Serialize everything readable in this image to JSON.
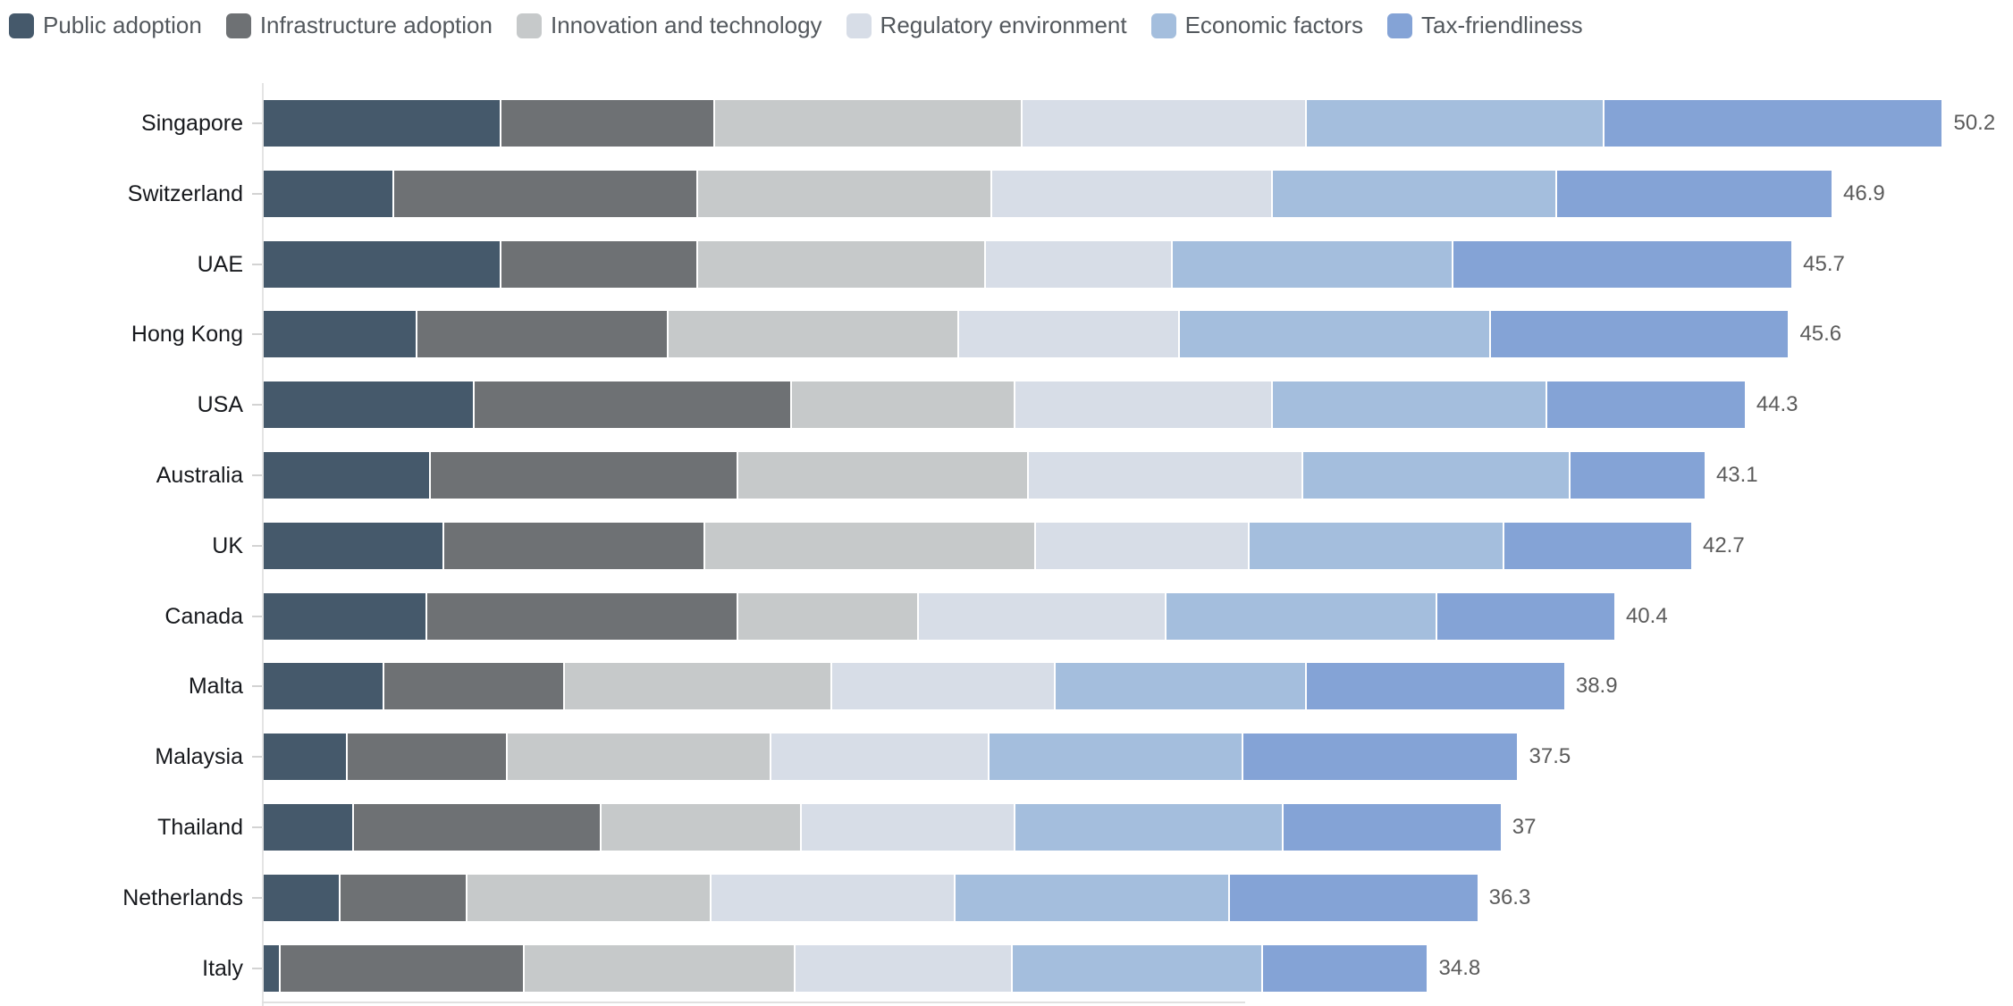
{
  "chart_data": {
    "type": "bar",
    "orientation": "horizontal",
    "stacked": true,
    "legend_position": "top",
    "grid": false,
    "xlim": [
      0,
      52
    ],
    "categories": [
      "Singapore",
      "Switzerland",
      "UAE",
      "Hong Kong",
      "USA",
      "Australia",
      "UK",
      "Canada",
      "Malta",
      "Malaysia",
      "Thailand",
      "Netherlands",
      "Italy"
    ],
    "series": [
      {
        "name": "Public adoption",
        "color": "#45596b",
        "values": [
          7.1,
          3.9,
          7.1,
          4.6,
          6.3,
          5.0,
          5.4,
          4.9,
          3.6,
          2.5,
          2.7,
          2.3,
          0.5
        ]
      },
      {
        "name": "Infrastructure adoption",
        "color": "#6e7174",
        "values": [
          6.4,
          9.1,
          5.9,
          7.5,
          9.5,
          9.2,
          7.8,
          9.3,
          5.4,
          4.8,
          7.4,
          3.8,
          7.3
        ]
      },
      {
        "name": "Innovation and technology",
        "color": "#c6c9ca",
        "values": [
          9.2,
          8.8,
          8.6,
          8.7,
          6.7,
          8.7,
          9.9,
          5.4,
          8.0,
          7.9,
          6.0,
          7.3,
          8.1
        ]
      },
      {
        "name": "Regulatory environment",
        "color": "#d7dde7",
        "values": [
          8.5,
          8.4,
          5.6,
          6.6,
          7.7,
          8.2,
          6.4,
          7.4,
          6.7,
          6.5,
          6.4,
          7.3,
          6.5
        ]
      },
      {
        "name": "Economic factors",
        "color": "#a4bedd",
        "values": [
          8.9,
          8.5,
          8.4,
          9.3,
          8.2,
          8.0,
          7.6,
          8.1,
          7.5,
          7.6,
          8.0,
          8.2,
          7.5
        ]
      },
      {
        "name": "Tax-friendliness",
        "color": "#84a3d6",
        "values": [
          10.1,
          8.2,
          10.1,
          8.9,
          5.9,
          4.0,
          5.6,
          5.3,
          7.7,
          8.2,
          6.5,
          7.4,
          4.9
        ]
      }
    ],
    "totals": [
      50.2,
      46.9,
      45.7,
      45.6,
      44.3,
      43.1,
      42.7,
      40.4,
      38.9,
      37.5,
      37,
      36.3,
      34.8
    ],
    "total_labels": [
      "50.2",
      "46.9",
      "45.7",
      "45.6",
      "44.3",
      "43.1",
      "42.7",
      "40.4",
      "38.9",
      "37.5",
      "37",
      "36.3",
      "34.8"
    ]
  },
  "colors": {
    "axis_line": "#e4e4e4",
    "tick": "#d3d3d3",
    "category_label": "#17191d",
    "value_label": "#5b5b5b",
    "legend_label": "#53585d",
    "background": "#ffffff"
  }
}
